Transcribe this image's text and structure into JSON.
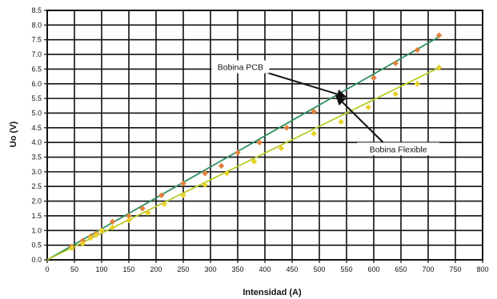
{
  "chart_data": {
    "type": "scatter",
    "title": "",
    "xlabel": "Intensidad (A)",
    "ylabel": "Uo (V)",
    "xlim": [
      0,
      800
    ],
    "ylim": [
      0,
      8.5
    ],
    "x_ticks": [
      0,
      50,
      100,
      150,
      200,
      250,
      300,
      350,
      400,
      450,
      500,
      550,
      600,
      650,
      700,
      750,
      800
    ],
    "y_ticks": [
      "0.0",
      "0.5",
      "1.0",
      "1.5",
      "2.0",
      "2.5",
      "3.0",
      "3.5",
      "4.0",
      "4.5",
      "5.0",
      "5.5",
      "6.0",
      "6.5",
      "7.0",
      "7.5",
      "8.0",
      "8.5"
    ],
    "grid": true,
    "series": [
      {
        "name": "Bobina PCB",
        "color": "#e0813a",
        "trend_color": "#2f8f5f",
        "x": [
          45,
          65,
          80,
          90,
          100,
          120,
          150,
          175,
          210,
          250,
          290,
          320,
          350,
          390,
          440,
          490,
          540,
          600,
          640,
          680,
          720
        ],
        "y": [
          0.45,
          0.65,
          0.8,
          0.9,
          1.0,
          1.3,
          1.5,
          1.75,
          2.2,
          2.6,
          2.95,
          3.2,
          3.65,
          4.0,
          4.5,
          5.05,
          5.6,
          6.2,
          6.7,
          7.15,
          7.65
        ],
        "trend": [
          [
            0,
            0.0
          ],
          [
            720,
            7.6
          ]
        ]
      },
      {
        "name": "Bobina Flexible",
        "color": "#e8d12a",
        "trend_color": "#b8cc2a",
        "x": [
          45,
          65,
          80,
          90,
          100,
          120,
          150,
          185,
          215,
          250,
          290,
          330,
          380,
          430,
          490,
          540,
          590,
          640,
          680,
          720
        ],
        "y": [
          0.4,
          0.55,
          0.75,
          0.85,
          1.0,
          1.1,
          1.35,
          1.6,
          1.9,
          2.2,
          2.55,
          2.95,
          3.35,
          3.8,
          4.3,
          4.7,
          5.2,
          5.65,
          6.0,
          6.55
        ],
        "trend": [
          [
            0,
            0.0
          ],
          [
            720,
            6.55
          ]
        ]
      }
    ],
    "annotations": [
      {
        "text": "Bobina PCB",
        "series": 0,
        "label_at": [
          355,
          6.55
        ],
        "arrow_from": [
          400,
          6.4
        ],
        "arrow_to": [
          550,
          5.55
        ]
      },
      {
        "text": "Bobina Flexible",
        "series": 1,
        "label_at": [
          645,
          3.75
        ],
        "arrow_from": [
          620,
          3.95
        ],
        "arrow_to": [
          530,
          5.6
        ]
      }
    ]
  }
}
